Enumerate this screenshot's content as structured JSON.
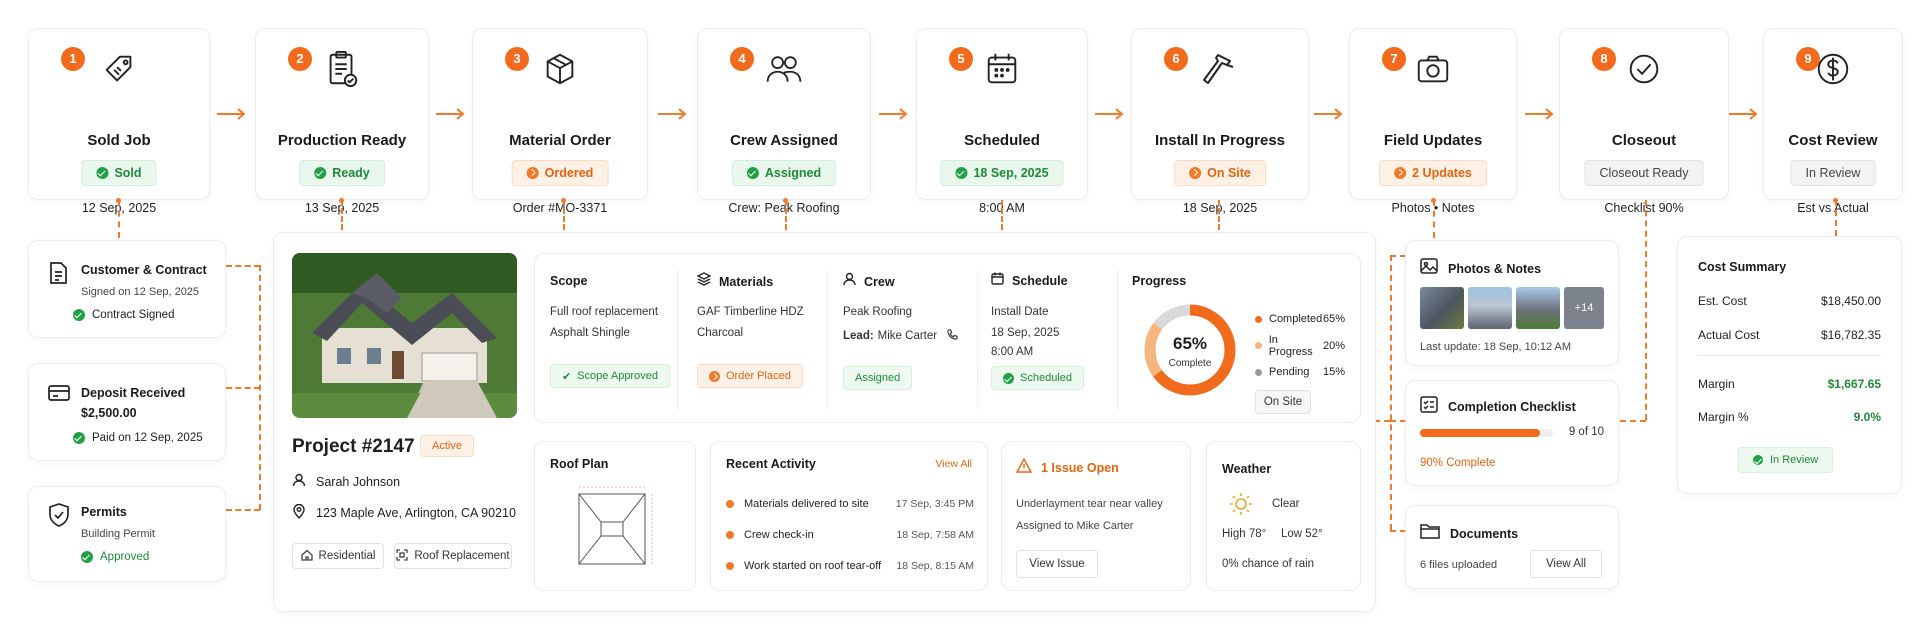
{
  "stages": [
    {
      "num": "1",
      "title": "Sold Job",
      "badge": "Sold",
      "sub": "12 Sep, 2025",
      "icon": "tag-icon",
      "style": "green"
    },
    {
      "num": "2",
      "title": "Production Ready",
      "badge": "Ready",
      "sub": "13 Sep, 2025",
      "icon": "clipboard-check-icon",
      "style": "green"
    },
    {
      "num": "3",
      "title": "Material Order",
      "badge": "Ordered",
      "sub": "Order #MO-3371",
      "icon": "box-icon",
      "style": "orange"
    },
    {
      "num": "4",
      "title": "Crew Assigned",
      "badge": "Assigned",
      "sub": "Crew: Peak Roofing",
      "icon": "users-icon",
      "style": "green"
    },
    {
      "num": "5",
      "title": "Scheduled",
      "badge": "18 Sep, 2025",
      "sub": "8:00 AM",
      "icon": "calendar-icon",
      "style": "green"
    },
    {
      "num": "6",
      "title": "Install In Progress",
      "badge": "On Site",
      "sub": "18 Sep, 2025",
      "icon": "hammer-icon",
      "style": "orange"
    },
    {
      "num": "7",
      "title": "Field Updates",
      "badge": "2 Updates",
      "sub": "Photos • Notes",
      "icon": "camera-icon",
      "style": "orange"
    },
    {
      "num": "8",
      "title": "Closeout",
      "badge": "Closeout Ready",
      "sub": "Checklist 90%",
      "icon": "check-circle-icon",
      "style": "gray"
    },
    {
      "num": "9",
      "title": "Cost Review",
      "badge": "In Review",
      "sub": "Est vs Actual",
      "icon": "dollar-icon",
      "style": "gray"
    }
  ],
  "left": {
    "customer": {
      "title": "Customer & Contract",
      "line": "Signed on 12 Sep, 2025",
      "status": "Contract Signed"
    },
    "deposit": {
      "title": "Deposit Received",
      "amount": "$2,500.00",
      "status": "Paid on 12 Sep, 2025"
    },
    "permits": {
      "title": "Permits",
      "line": "Building Permit",
      "status": "Approved"
    }
  },
  "project": {
    "name": "Project #2147",
    "status": "Active",
    "customer": "Sarah Johnson",
    "address": "123 Maple Ave, Arlington, CA 90210",
    "tags": [
      "Residential",
      "Roof Replacement"
    ]
  },
  "details": {
    "scope": {
      "title": "Scope",
      "lines": [
        "Full roof replacement",
        "Asphalt Shingle"
      ],
      "tag": "Scope Approved"
    },
    "materials": {
      "title": "Materials",
      "lines": [
        "GAF Timberline HDZ",
        "Charcoal"
      ],
      "tag": "Order Placed"
    },
    "crew": {
      "title": "Crew",
      "line1": "Peak Roofing",
      "lead_label": "Lead:",
      "lead_name": "Mike Carter",
      "tag": "Assigned"
    },
    "schedule": {
      "title": "Schedule",
      "lines": [
        "Install Date",
        "18 Sep, 2025",
        "8:00 AM"
      ],
      "tag": "Scheduled"
    },
    "progress": {
      "title": "Progress",
      "percent_label": "65%",
      "caption": "Complete",
      "legend": [
        {
          "label": "Completed",
          "value": "65%",
          "color": "#f26a1b"
        },
        {
          "label": "In Progress",
          "value": "20%",
          "color": "#f7b57e"
        },
        {
          "label": "Pending",
          "value": "15%",
          "color": "#9a9a9a"
        }
      ],
      "button": "On Site",
      "completed_fraction": 0.65,
      "in_progress_fraction": 0.2
    }
  },
  "roof_plan": {
    "title": "Roof Plan"
  },
  "activity": {
    "title": "Recent Activity",
    "view_all": "View All",
    "items": [
      {
        "text": "Materials delivered to site",
        "time": "17 Sep, 3:45 PM"
      },
      {
        "text": "Crew check-in",
        "time": "18 Sep, 7:58 AM"
      },
      {
        "text": "Work started on roof tear-off",
        "time": "18 Sep, 8:15 AM"
      }
    ]
  },
  "issue": {
    "title": "1 Issue Open",
    "line1": "Underlayment tear near valley",
    "line2": "Assigned to Mike Carter",
    "button": "View Issue"
  },
  "weather": {
    "title": "Weather",
    "condition": "Clear",
    "high": "High 78°",
    "low": "Low 52°",
    "rain": "0% chance of rain"
  },
  "right": {
    "photos": {
      "title": "Photos & Notes",
      "more": "+14",
      "last_update": "Last update: 18 Sep, 10:12 AM"
    },
    "checklist": {
      "title": "Completion Checklist",
      "count": "9 of 10",
      "complete": "90% Complete",
      "fraction": 0.9
    },
    "documents": {
      "title": "Documents",
      "files": "6 files uploaded",
      "button": "View All"
    }
  },
  "cost": {
    "title": "Cost Summary",
    "rows": [
      {
        "label": "Est. Cost",
        "value": "$18,450.00"
      },
      {
        "label": "Actual Cost",
        "value": "$16,782.35"
      }
    ],
    "margin_label": "Margin",
    "margin_value": "$1,667.65",
    "margin_pct_label": "Margin %",
    "margin_pct_value": "9.0%",
    "status": "In Review"
  },
  "colors": {
    "accent": "#f26a1b",
    "success": "#1e8a3a"
  }
}
